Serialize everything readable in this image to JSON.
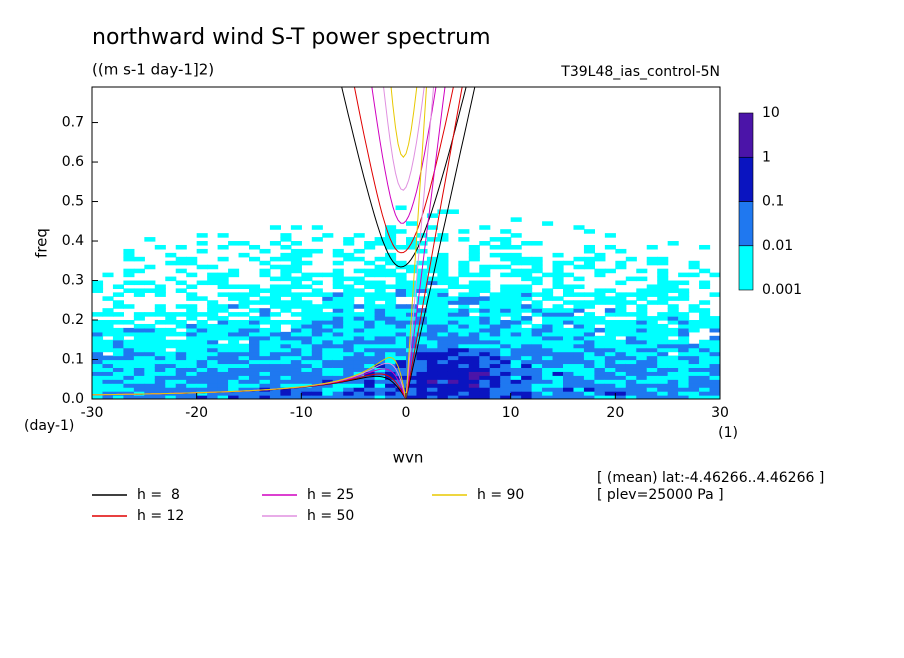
{
  "chart_data": {
    "type": "contour",
    "title": "northward wind S-T power spectrum",
    "subtitle": "((m s-1 day-1]2)",
    "run_label": "T39L48_ias_control-5N",
    "xlabel": "wvn",
    "ylabel": "freq",
    "xunit": "(1)",
    "yunit": "(day-1)",
    "xlim": [
      -30,
      30
    ],
    "xticks": [
      -30,
      -20,
      -10,
      {
        "value": 0,
        "label": "0"
      },
      10,
      20,
      30
    ],
    "ylim": [
      0,
      0.79
    ],
    "yticks": [
      {
        "value": 0,
        "label": "0.0"
      },
      0.1,
      0.2,
      0.3,
      0.4,
      0.5,
      0.6,
      0.7
    ],
    "colorbar": {
      "levels": [
        0.001,
        0.01,
        0.1,
        1,
        10
      ],
      "colors": [
        "#00ffff",
        "#1f78f0",
        "#0a14c0",
        "#4b14a8"
      ]
    },
    "series": [
      {
        "name": "h =  8",
        "h": 8,
        "color": "#000000"
      },
      {
        "name": "h = 12",
        "h": 12,
        "color": "#e00000"
      },
      {
        "name": "h = 25",
        "h": 25,
        "color": "#d000c0"
      },
      {
        "name": "h = 50",
        "h": 50,
        "color": "#e090e0"
      },
      {
        "name": "h = 90",
        "h": 90,
        "color": "#e8c800"
      }
    ],
    "notes": [
      "[ (mean) lat:-4.46266..4.46266 ]",
      "[ plev=25000 Pa ]"
    ]
  }
}
